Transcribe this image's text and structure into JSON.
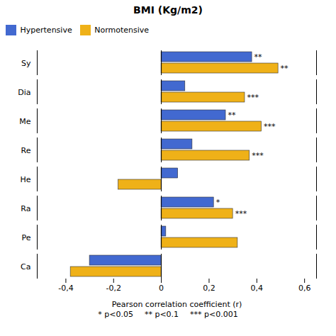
{
  "chart_data": {
    "type": "bar",
    "orientation": "horizontal",
    "title": "BMI (Kg/m2)",
    "xlabel": "Pearson correlation coefficient (r)",
    "categories": [
      "Sy",
      "Dia",
      "Me",
      "Re",
      "He",
      "Ra",
      "Pe",
      "Ca"
    ],
    "series": [
      {
        "name": "Hypertensive",
        "values": [
          0.38,
          0.1,
          0.27,
          0.13,
          0.07,
          0.22,
          0.02,
          -0.3
        ],
        "value_labels": [
          "**",
          null,
          "**",
          null,
          null,
          "*",
          null,
          null
        ]
      },
      {
        "name": "Normotensive",
        "values": [
          0.49,
          0.35,
          0.42,
          0.37,
          -0.18,
          0.3,
          0.32,
          -0.38
        ],
        "value_labels": [
          "**",
          "***",
          "***",
          "***",
          null,
          "***",
          null,
          null
        ]
      }
    ],
    "xlim": [
      -0.52,
      0.65
    ],
    "xticks": [
      {
        "value": -0.4,
        "label": "-0,4"
      },
      {
        "value": -0.2,
        "label": "-0,2"
      },
      0,
      {
        "value": 0.2,
        "label": "0,2"
      },
      {
        "value": 0.4,
        "label": "0,4"
      },
      {
        "value": 0.6,
        "label": "0,6"
      }
    ],
    "legend": "upper left",
    "annotation": [
      "* p<0.05",
      "** p<0.1",
      "*** p<0.001"
    ]
  }
}
